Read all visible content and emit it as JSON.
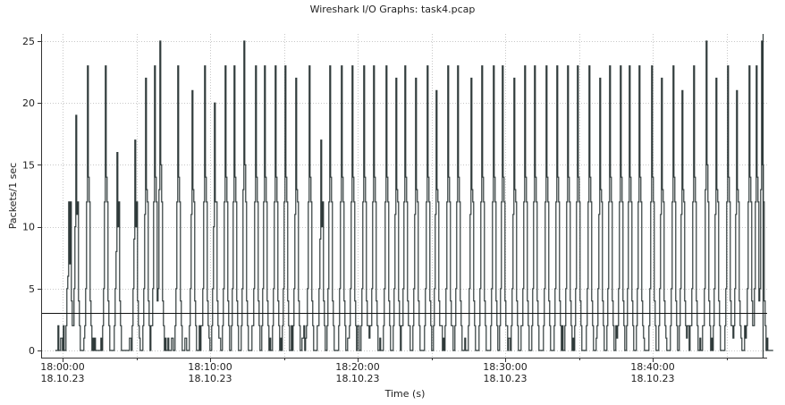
{
  "window": {
    "title": "Wireshark I/O Graphs: task4.pcap"
  },
  "chart_data": {
    "type": "line",
    "title": "Wireshark I/O Graphs: task4.pcap",
    "xlabel": "Time (s)",
    "ylabel": "Packets/1 sec",
    "ylim": [
      0,
      25
    ],
    "y_ticks": [
      0,
      5,
      10,
      15,
      20,
      25
    ],
    "x_tick_labels": [
      {
        "time": "18:00:00",
        "date": "18.10.23"
      },
      {
        "time": "18:10:00",
        "date": "18.10.23"
      },
      {
        "time": "18:20:00",
        "date": "18.10.23"
      },
      {
        "time": "18:30:00",
        "date": "18.10.23"
      },
      {
        "time": "18:40:00",
        "date": "18.10.23"
      }
    ],
    "xlim_minutes": [
      -0.5,
      48.2
    ],
    "grid": true,
    "series": [
      {
        "color": "#2f3a3a",
        "burst_times_minutes": [
          0.4,
          0.9,
          1.7,
          2.9,
          3.7,
          4.9,
          5.6,
          6.2,
          6.6,
          7.8,
          8.8,
          9.6,
          10.3,
          11.0,
          11.6,
          12.3,
          13.1,
          13.7,
          14.4,
          15.1,
          15.8,
          16.7,
          17.5,
          18.1,
          18.9,
          19.6,
          20.4,
          21.1,
          21.9,
          22.6,
          23.2,
          23.9,
          24.7,
          25.3,
          26.1,
          26.8,
          27.7,
          28.4,
          29.2,
          29.8,
          30.6,
          31.3,
          32.0,
          32.8,
          33.5,
          34.2,
          34.9,
          35.7,
          36.4,
          37.1,
          37.8,
          38.4,
          39.1,
          39.9,
          40.6,
          41.4,
          42.0,
          42.8,
          43.6,
          44.3,
          45.1,
          45.7,
          46.5,
          47.0,
          47.4
        ],
        "burst_peaks": [
          12,
          19,
          23,
          23,
          16,
          17,
          22,
          23,
          25,
          23,
          21,
          23,
          20,
          23,
          23,
          25,
          23,
          23,
          23,
          23,
          22,
          23,
          17,
          23,
          23,
          23,
          23,
          23,
          23,
          22,
          23,
          22,
          23,
          21,
          23,
          23,
          22,
          23,
          23,
          23,
          22,
          23,
          23,
          23,
          23,
          23,
          23,
          23,
          22,
          23,
          23,
          23,
          23,
          23,
          22,
          23,
          21,
          23,
          25,
          22,
          23,
          21,
          23,
          23,
          25
        ]
      }
    ],
    "threshold_line": {
      "value": 3
    }
  }
}
